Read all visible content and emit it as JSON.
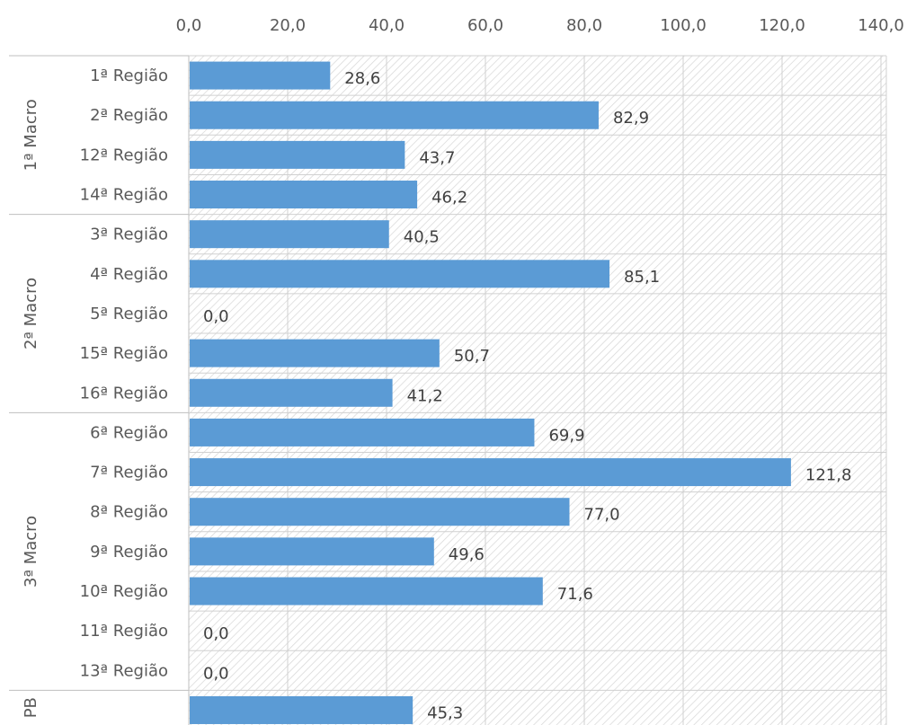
{
  "chart_data": {
    "type": "bar",
    "orientation": "horizontal",
    "title": "",
    "xlabel": "",
    "ylabel": "",
    "xlim": [
      0,
      140
    ],
    "x_ticks": [
      "0,0",
      "20,0",
      "40,0",
      "60,0",
      "80,0",
      "100,0",
      "120,0",
      "140,0"
    ],
    "x_axis_position": "top",
    "grid": true,
    "bar_color": "#5b9bd5",
    "groups": [
      {
        "label": "1ª Macro",
        "categories": [
          "1ª Região",
          "2ª Região",
          "12ª Região",
          "14ª Região"
        ],
        "values": [
          28.6,
          82.9,
          43.7,
          46.2
        ],
        "value_labels": [
          "28,6",
          "82,9",
          "43,7",
          "46,2"
        ]
      },
      {
        "label": "2ª Macro",
        "categories": [
          "3ª Região",
          "4ª Região",
          "5ª Região",
          "15ª Região",
          "16ª Região"
        ],
        "values": [
          40.5,
          85.1,
          0.0,
          50.7,
          41.2
        ],
        "value_labels": [
          "40,5",
          "85,1",
          "0,0",
          "50,7",
          "41,2"
        ]
      },
      {
        "label": "3ª Macro",
        "categories": [
          "6ª Região",
          "7ª Região",
          "8ª Região",
          "9ª Região",
          "10ª Região",
          "11ª Região",
          "13ª Região"
        ],
        "values": [
          69.9,
          121.8,
          77.0,
          49.6,
          71.6,
          0.0,
          0.0
        ],
        "value_labels": [
          "69,9",
          "121,8",
          "77,0",
          "49,6",
          "71,6",
          "0,0",
          "0,0"
        ]
      },
      {
        "label": "PB",
        "categories": [
          ""
        ],
        "values": [
          45.3
        ],
        "value_labels": [
          "45,3"
        ]
      }
    ]
  }
}
